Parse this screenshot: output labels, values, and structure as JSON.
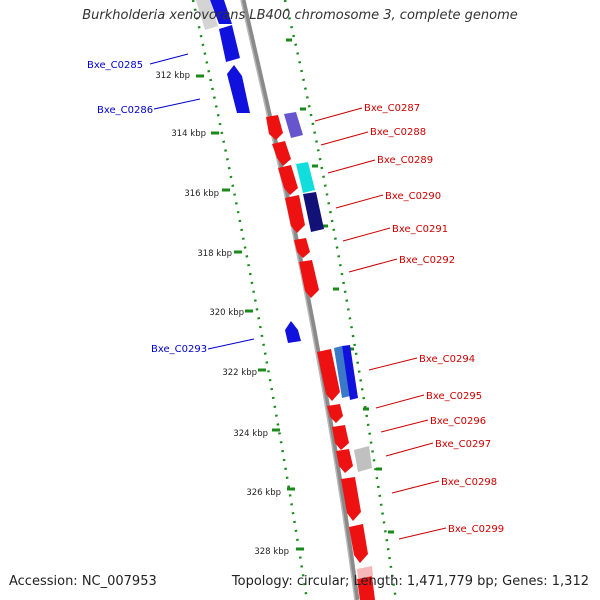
{
  "title": "Burkholderia xenovorans LB400 chromosome 3, complete genome",
  "accession_label": "Accession: NC_007953",
  "summary_label": "Topology: circular; Length: 1,471,779 bp; Genes: 1,312",
  "colors": {
    "backbone": "#8a8a8a",
    "ruler": "#1a8a1a",
    "forward_label": "#cc0000",
    "reverse_label": "#0000cc",
    "gene_red": "#ee1111",
    "gene_blue": "#1111dd",
    "gene_violet": "#6655cc",
    "gene_cyan": "#11dddd",
    "gene_navy": "#111177",
    "gene_grey": "#c8c8c8"
  },
  "kbp_ticks": [
    {
      "kbp": 312,
      "label": "312 kbp"
    },
    {
      "kbp": 314,
      "label": "314 kbp"
    },
    {
      "kbp": 316,
      "label": "316 kbp"
    },
    {
      "kbp": 318,
      "label": "318 kbp"
    },
    {
      "kbp": 320,
      "label": "320 kbp"
    },
    {
      "kbp": 322,
      "label": "322 kbp"
    },
    {
      "kbp": 324,
      "label": "324 kbp"
    },
    {
      "kbp": 326,
      "label": "326 kbp"
    },
    {
      "kbp": 328,
      "label": "328 kbp"
    }
  ],
  "gene_labels": [
    {
      "name": "Bxe_C0285",
      "strand": "reverse"
    },
    {
      "name": "Bxe_C0286",
      "strand": "reverse"
    },
    {
      "name": "Bxe_C0287",
      "strand": "forward"
    },
    {
      "name": "Bxe_C0288",
      "strand": "forward"
    },
    {
      "name": "Bxe_C0289",
      "strand": "forward"
    },
    {
      "name": "Bxe_C0290",
      "strand": "forward"
    },
    {
      "name": "Bxe_C0291",
      "strand": "forward"
    },
    {
      "name": "Bxe_C0292",
      "strand": "forward"
    },
    {
      "name": "Bxe_C0293",
      "strand": "reverse"
    },
    {
      "name": "Bxe_C0294",
      "strand": "forward"
    },
    {
      "name": "Bxe_C0295",
      "strand": "forward"
    },
    {
      "name": "Bxe_C0296",
      "strand": "forward"
    },
    {
      "name": "Bxe_C0297",
      "strand": "forward"
    },
    {
      "name": "Bxe_C0298",
      "strand": "forward"
    },
    {
      "name": "Bxe_C0299",
      "strand": "forward"
    }
  ]
}
